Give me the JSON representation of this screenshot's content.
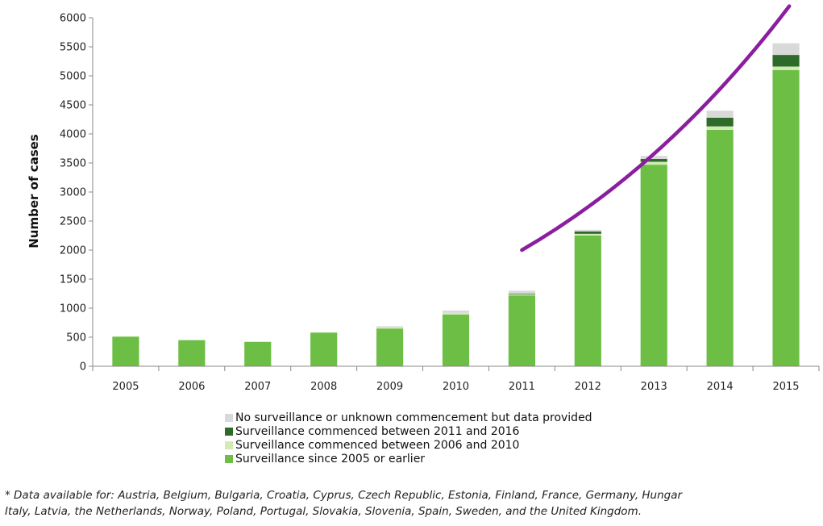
{
  "chart_data": {
    "type": "bar",
    "stacked": true,
    "ylabel": "Number of cases",
    "ylim": [
      0,
      6000
    ],
    "yticks": [
      0,
      500,
      1000,
      1500,
      2000,
      2500,
      3000,
      3500,
      4000,
      4500,
      5000,
      5500,
      6000
    ],
    "categories": [
      "2005",
      "2006",
      "2007",
      "2008",
      "2009",
      "2010",
      "2011",
      "2012",
      "2013",
      "2014",
      "2015"
    ],
    "series": [
      {
        "name": "Surveillance since 2005 or earlier",
        "color": "#6cbf44",
        "values": [
          510,
          450,
          420,
          580,
          650,
          890,
          1220,
          2250,
          3470,
          4070,
          5100
        ]
      },
      {
        "name": "Surveillance commenced between 2006 and 2010",
        "color": "#d2ebb4",
        "values": [
          0,
          0,
          0,
          0,
          20,
          30,
          20,
          30,
          50,
          60,
          60
        ]
      },
      {
        "name": "Surveillance commenced between 2011 and 2016",
        "color": "#2e6b2a",
        "values": [
          0,
          0,
          0,
          0,
          0,
          0,
          10,
          40,
          50,
          150,
          200
        ]
      },
      {
        "name": "No surveillance or unknown commencement but data provided",
        "color": "#d9d9d9",
        "values": [
          0,
          0,
          0,
          0,
          20,
          40,
          50,
          30,
          50,
          120,
          200
        ]
      }
    ],
    "trend_arrow": {
      "color": "#8a1e9e",
      "from": [
        2011,
        2000
      ],
      "to": [
        2015.05,
        6200
      ]
    },
    "legend_position": "bottom"
  },
  "footnote": {
    "line1": "* Data available for: Austria, Belgium, Bulgaria, Croatia, Cyprus, Czech Republic, Estonia, Finland, France, Germany, Hungar",
    "line2": "Italy, Latvia, the Netherlands, Norway, Poland, Portugal, Slovakia, Slovenia, Spain, Sweden, and the United Kingdom."
  }
}
